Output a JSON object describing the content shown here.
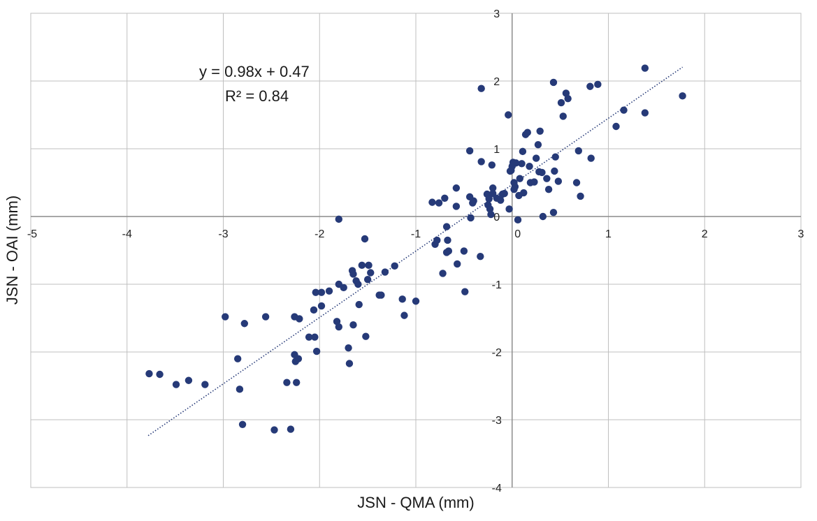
{
  "chart_data": {
    "type": "scatter",
    "xlabel": "JSN - QMA (mm)",
    "ylabel": "JSN - OAI (mm)",
    "xlim": [
      -5,
      3
    ],
    "ylim": [
      -4,
      3
    ],
    "x_ticks": [
      "-5",
      "-4",
      "-3",
      "-2",
      "-1",
      "0",
      "1",
      "2",
      "3"
    ],
    "y_ticks": [
      "3",
      "2",
      "1",
      "0",
      "-1",
      "-2",
      "-3",
      "-4"
    ],
    "grid": true,
    "marker_color": "#263a78",
    "trendline": {
      "type": "linear",
      "slope": 0.98,
      "intercept": 0.47,
      "x_range": [
        -3.78,
        1.77
      ],
      "equation": "y = 0.98x + 0.47",
      "r_squared": "R² = 0.84",
      "style": "dotted",
      "color": "#263a78"
    },
    "points": [
      [
        -3.77,
        -2.32
      ],
      [
        -3.66,
        -2.33
      ],
      [
        -3.49,
        -2.48
      ],
      [
        -3.36,
        -2.42
      ],
      [
        -3.19,
        -2.48
      ],
      [
        -2.98,
        -1.48
      ],
      [
        -2.85,
        -2.1
      ],
      [
        -2.83,
        -2.55
      ],
      [
        -2.8,
        -3.07
      ],
      [
        -2.78,
        -1.58
      ],
      [
        -2.56,
        -1.48
      ],
      [
        -2.47,
        -3.15
      ],
      [
        -2.34,
        -2.45
      ],
      [
        -2.3,
        -3.14
      ],
      [
        -2.26,
        -2.04
      ],
      [
        -2.26,
        -1.48
      ],
      [
        -2.25,
        -2.14
      ],
      [
        -2.24,
        -2.45
      ],
      [
        -2.22,
        -2.1
      ],
      [
        -2.21,
        -1.51
      ],
      [
        -2.11,
        -1.78
      ],
      [
        -2.06,
        -1.38
      ],
      [
        -2.05,
        -1.78
      ],
      [
        -2.04,
        -1.12
      ],
      [
        -2.03,
        -1.99
      ],
      [
        -1.98,
        -1.12
      ],
      [
        -1.98,
        -1.32
      ],
      [
        -1.9,
        -1.1
      ],
      [
        -1.82,
        -1.55
      ],
      [
        -1.8,
        -1.0
      ],
      [
        -1.8,
        -1.63
      ],
      [
        -1.8,
        -0.04
      ],
      [
        -1.75,
        -1.05
      ],
      [
        -1.7,
        -1.94
      ],
      [
        -1.69,
        -2.17
      ],
      [
        -1.66,
        -0.8
      ],
      [
        -1.65,
        -0.85
      ],
      [
        -1.65,
        -1.6
      ],
      [
        -1.62,
        -0.95
      ],
      [
        -1.6,
        -1.0
      ],
      [
        -1.59,
        -1.3
      ],
      [
        -1.56,
        -0.72
      ],
      [
        -1.53,
        -0.33
      ],
      [
        -1.52,
        -1.77
      ],
      [
        -1.5,
        -0.93
      ],
      [
        -1.49,
        -0.72
      ],
      [
        -1.47,
        -0.83
      ],
      [
        -1.38,
        -1.16
      ],
      [
        -1.36,
        -1.16
      ],
      [
        -1.32,
        -0.82
      ],
      [
        -1.22,
        -0.73
      ],
      [
        -1.14,
        -1.22
      ],
      [
        -1.12,
        -1.46
      ],
      [
        -1.0,
        -1.25
      ],
      [
        -0.83,
        0.21
      ],
      [
        -0.8,
        -0.41
      ],
      [
        -0.78,
        -0.35
      ],
      [
        -0.76,
        0.2
      ],
      [
        -0.72,
        -0.84
      ],
      [
        -0.7,
        0.27
      ],
      [
        -0.68,
        -0.53
      ],
      [
        -0.68,
        -0.15
      ],
      [
        -0.67,
        -0.35
      ],
      [
        -0.66,
        -0.51
      ],
      [
        -0.58,
        0.42
      ],
      [
        -0.58,
        0.15
      ],
      [
        -0.57,
        -0.7
      ],
      [
        -0.5,
        -0.51
      ],
      [
        -0.49,
        -1.11
      ],
      [
        -0.44,
        0.29
      ],
      [
        -0.44,
        0.97
      ],
      [
        -0.43,
        -0.02
      ],
      [
        -0.41,
        0.2
      ],
      [
        -0.4,
        0.23
      ],
      [
        -0.33,
        -0.59
      ],
      [
        -0.32,
        1.89
      ],
      [
        -0.32,
        0.81
      ],
      [
        -0.26,
        0.33
      ],
      [
        -0.25,
        0.17
      ],
      [
        -0.24,
        0.26
      ],
      [
        -0.23,
        0.11
      ],
      [
        -0.22,
        0.03
      ],
      [
        -0.21,
        0.76
      ],
      [
        -0.2,
        0.42
      ],
      [
        -0.2,
        0.34
      ],
      [
        -0.16,
        0.27
      ],
      [
        -0.12,
        0.24
      ],
      [
        -0.1,
        0.33
      ],
      [
        -0.08,
        0.34
      ],
      [
        -0.04,
        1.5
      ],
      [
        -0.03,
        0.11
      ],
      [
        -0.02,
        0.67
      ],
      [
        -0.01,
        0.68
      ],
      [
        0.0,
        0.74
      ],
      [
        0.01,
        0.8
      ],
      [
        0.02,
        0.5
      ],
      [
        0.02,
        0.4
      ],
      [
        0.03,
        0.44
      ],
      [
        0.04,
        0.79
      ],
      [
        0.06,
        -0.05
      ],
      [
        0.07,
        0.31
      ],
      [
        0.08,
        0.56
      ],
      [
        0.1,
        0.78
      ],
      [
        0.11,
        0.96
      ],
      [
        0.12,
        0.35
      ],
      [
        0.14,
        1.21
      ],
      [
        0.16,
        1.24
      ],
      [
        0.18,
        0.74
      ],
      [
        0.19,
        0.5
      ],
      [
        0.23,
        0.51
      ],
      [
        0.25,
        0.86
      ],
      [
        0.27,
        1.06
      ],
      [
        0.28,
        0.66
      ],
      [
        0.29,
        1.26
      ],
      [
        0.31,
        0.65
      ],
      [
        0.32,
        0.0
      ],
      [
        0.36,
        0.56
      ],
      [
        0.38,
        0.4
      ],
      [
        0.43,
        0.06
      ],
      [
        0.43,
        1.98
      ],
      [
        0.44,
        0.67
      ],
      [
        0.45,
        0.88
      ],
      [
        0.48,
        0.52
      ],
      [
        0.51,
        1.68
      ],
      [
        0.53,
        1.48
      ],
      [
        0.56,
        1.82
      ],
      [
        0.58,
        1.74
      ],
      [
        0.67,
        0.5
      ],
      [
        0.69,
        0.97
      ],
      [
        0.71,
        0.3
      ],
      [
        0.81,
        1.92
      ],
      [
        0.82,
        0.86
      ],
      [
        0.89,
        1.95
      ],
      [
        1.08,
        1.33
      ],
      [
        1.16,
        1.57
      ],
      [
        1.38,
        2.19
      ],
      [
        1.38,
        1.53
      ],
      [
        1.77,
        1.78
      ]
    ]
  }
}
